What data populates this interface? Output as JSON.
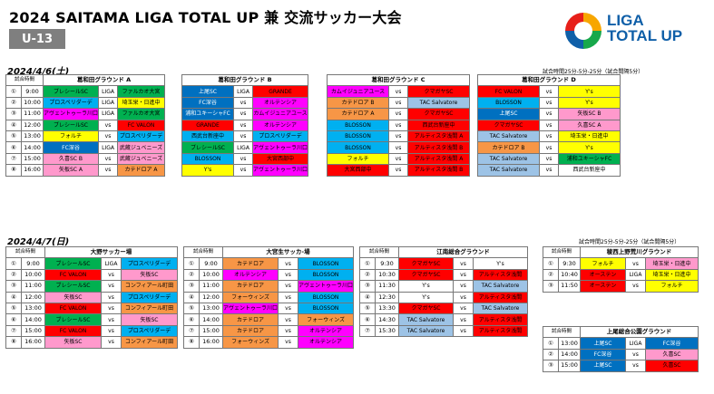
{
  "title": "2024 SAITAMA LIGA TOTAL UP 兼 交流サッカー大会",
  "category": "U-13",
  "logo": {
    "line1": "LIGA",
    "line2": "TOTAL UP",
    "colors": [
      "#f7a600",
      "#e71f19",
      "#17a84b",
      "#0f5fa8"
    ]
  },
  "day1": {
    "date": "2024/4/6(土)",
    "note": "試合時間25分-5分-25分（試合間隔5分）",
    "time_header": "試合時間",
    "tables": [
      {
        "venue": "葛和田グラウンド A",
        "rows": [
          {
            "num": "①",
            "time": "9:00",
            "h": "ブレシールSC",
            "hc": "#00b050",
            "v": "LIGA",
            "a": "ファルカオ大宮",
            "ac": "#00b050"
          },
          {
            "num": "②",
            "time": "10:00",
            "h": "プロスペリダーデ",
            "hc": "#00b0f0",
            "v": "LIGA",
            "a": "埼玉栄・日進中",
            "ac": "#ffff00"
          },
          {
            "num": "③",
            "time": "11:00",
            "h": "アヴェントゥーラ川口",
            "hc": "#ff00ff",
            "v": "LIGA",
            "a": "ファルカオ大宮",
            "ac": "#00b050"
          },
          {
            "num": "④",
            "time": "12:00",
            "h": "ブレシールSC",
            "hc": "#00b050",
            "v": "vs",
            "a": "FC VALON",
            "ac": "#ff0000"
          },
          {
            "num": "⑤",
            "time": "13:00",
            "h": "フォルチ",
            "hc": "#ffff00",
            "v": "vs",
            "a": "プロスペリダーデ",
            "ac": "#00b0f0"
          },
          {
            "num": "⑥",
            "time": "14:00",
            "h": "FC深谷",
            "hc": "#0070c0",
            "v": "LIGA",
            "a": "武蔵ジュベニーズ",
            "ac": "#ff99cc"
          },
          {
            "num": "⑦",
            "time": "15:00",
            "h": "久喜SC B",
            "hc": "#ff99cc",
            "v": "vs",
            "a": "武蔵ジュベニーズ",
            "ac": "#ff99cc"
          },
          {
            "num": "⑧",
            "time": "16:00",
            "h": "矢板SC A",
            "hc": "#ff99cc",
            "v": "vs",
            "a": "カテドロア A",
            "ac": "#f79646"
          }
        ]
      },
      {
        "venue": "葛和田グラウンド B",
        "rows": [
          {
            "num": "①",
            "time": "",
            "h": "上尾SC",
            "hc": "#0070c0",
            "v": "LIGA",
            "a": "GRANDE",
            "ac": "#ff0000"
          },
          {
            "num": "②",
            "time": "",
            "h": "FC深谷",
            "hc": "#0070c0",
            "v": "vs",
            "a": "オルテンシア",
            "ac": "#ff00ff"
          },
          {
            "num": "③",
            "time": "",
            "h": "浦和ユキーシャFC",
            "hc": "#0070c0",
            "v": "vs",
            "a": "カムイジュニアユース",
            "ac": "#ff00ff"
          },
          {
            "num": "④",
            "time": "",
            "h": "GRANDE",
            "hc": "#ff0000",
            "v": "vs",
            "a": "オルテンシア",
            "ac": "#ff00ff"
          },
          {
            "num": "⑤",
            "time": "",
            "h": "西武台新座中",
            "hc": "#00b0f0",
            "v": "vs",
            "a": "プロスペリダーデ",
            "ac": "#00b0f0"
          },
          {
            "num": "⑥",
            "time": "",
            "h": "ブレシールSC",
            "hc": "#00b050",
            "v": "LIGA",
            "a": "アヴェントゥーラ川口",
            "ac": "#ff00ff"
          },
          {
            "num": "⑦",
            "time": "",
            "h": "BLOSSON",
            "hc": "#00b0f0",
            "v": "vs",
            "a": "大宮西部中",
            "ac": "#ff0000"
          },
          {
            "num": "⑧",
            "time": "",
            "h": "Y's",
            "hc": "#ffff00",
            "v": "vs",
            "a": "アヴェントゥーラ川口",
            "ac": "#ff00ff"
          }
        ]
      },
      {
        "venue": "葛和田グラウンド C",
        "rows": [
          {
            "num": "",
            "time": "",
            "h": "カムイジュニアユース",
            "hc": "#ff00ff",
            "v": "vs",
            "a": "クマガヤSC",
            "ac": "#ff0000"
          },
          {
            "num": "",
            "time": "",
            "h": "カテドロア B",
            "hc": "#f79646",
            "v": "vs",
            "a": "TAC Salvatore",
            "ac": "#9dc3e6"
          },
          {
            "num": "",
            "time": "",
            "h": "カテドロア A",
            "hc": "#f79646",
            "v": "vs",
            "a": "クマガヤSC",
            "ac": "#ff0000"
          },
          {
            "num": "",
            "time": "",
            "h": "BLOSSON",
            "hc": "#00b0f0",
            "v": "vs",
            "a": "西武台新座中",
            "ac": "#ff0000"
          },
          {
            "num": "",
            "time": "",
            "h": "BLOSSON",
            "hc": "#00b0f0",
            "v": "vs",
            "a": "アルティスタ浅間 A",
            "ac": "#ff0000"
          },
          {
            "num": "",
            "time": "",
            "h": "BLOSSON",
            "hc": "#00b0f0",
            "v": "vs",
            "a": "アルティスタ浅間 B",
            "ac": "#ff0000"
          },
          {
            "num": "",
            "time": "",
            "h": "フォルチ",
            "hc": "#ffff00",
            "v": "vs",
            "a": "アルティスタ浅間 A",
            "ac": "#ff0000"
          },
          {
            "num": "",
            "time": "",
            "h": "大宮西部中",
            "hc": "#ff0000",
            "v": "vs",
            "a": "アルティスタ浅間 B",
            "ac": "#ff0000"
          }
        ]
      },
      {
        "venue": "葛和田グラウンド D",
        "rows": [
          {
            "num": "",
            "time": "",
            "h": "FC VALON",
            "hc": "#ff0000",
            "v": "vs",
            "a": "Y's",
            "ac": "#ffff00"
          },
          {
            "num": "",
            "time": "",
            "h": "BLOSSON",
            "hc": "#00b0f0",
            "v": "vs",
            "a": "Y's",
            "ac": "#ffff00"
          },
          {
            "num": "",
            "time": "",
            "h": "上尾SC",
            "hc": "#0070c0",
            "v": "vs",
            "a": "矢板SC B",
            "ac": "#ff99cc"
          },
          {
            "num": "",
            "time": "",
            "h": "クマガヤSC",
            "hc": "#ff0000",
            "v": "vs",
            "a": "久喜SC A",
            "ac": "#ff99cc"
          },
          {
            "num": "",
            "time": "",
            "h": "TAC Salvatore",
            "hc": "#9dc3e6",
            "v": "vs",
            "a": "埼玉栄・日進中",
            "ac": "#ffff00"
          },
          {
            "num": "",
            "time": "",
            "h": "カテドロア B",
            "hc": "#f79646",
            "v": "vs",
            "a": "Y's",
            "ac": "#ffff00"
          },
          {
            "num": "",
            "time": "",
            "h": "TAC Salvatore",
            "hc": "#9dc3e6",
            "v": "vs",
            "a": "浦和ユキーシャFC",
            "ac": "#00b050"
          },
          {
            "num": "",
            "time": "",
            "h": "TAC Salvatore",
            "hc": "#9dc3e6",
            "v": "vs",
            "a": "西武台新座中",
            "ac": "#ffffff"
          }
        ]
      }
    ]
  },
  "day2": {
    "date": "2024/4/7(日)",
    "note": "試合時間25分-5分-25分（試合間隔5分）",
    "time_header": "試合時間",
    "tables": [
      {
        "venue": "大野サッカー場",
        "rows": [
          {
            "num": "①",
            "time": "9:00",
            "h": "ブレシールSC",
            "hc": "#00b050",
            "v": "LIGA",
            "a": "プロスペリダーデ",
            "ac": "#00b0f0"
          },
          {
            "num": "②",
            "time": "10:00",
            "h": "FC VALON",
            "hc": "#ff0000",
            "v": "vs",
            "a": "矢板SC",
            "ac": "#ff99cc"
          },
          {
            "num": "③",
            "time": "11:00",
            "h": "ブレシールSC",
            "hc": "#00b050",
            "v": "vs",
            "a": "コンフィアール町田",
            "ac": "#f79646"
          },
          {
            "num": "④",
            "time": "12:00",
            "h": "矢板SC",
            "hc": "#ff99cc",
            "v": "vs",
            "a": "プロスペリダーデ",
            "ac": "#00b0f0"
          },
          {
            "num": "⑤",
            "time": "13:00",
            "h": "FC VALON",
            "hc": "#ff0000",
            "v": "vs",
            "a": "コンフィアール町田",
            "ac": "#f79646"
          },
          {
            "num": "⑥",
            "time": "14:00",
            "h": "ブレシールSC",
            "hc": "#00b050",
            "v": "vs",
            "a": "矢板SC",
            "ac": "#ff99cc"
          },
          {
            "num": "⑦",
            "time": "15:00",
            "h": "FC VALON",
            "hc": "#ff0000",
            "v": "vs",
            "a": "プロスペリダーデ",
            "ac": "#00b0f0"
          },
          {
            "num": "⑧",
            "time": "16:00",
            "h": "矢板SC",
            "hc": "#ff99cc",
            "v": "vs",
            "a": "コンフィアール町田",
            "ac": "#f79646"
          }
        ]
      },
      {
        "venue": "大宮生サッカ-場",
        "rows": [
          {
            "num": "①",
            "time": "9:00",
            "h": "カテドロア",
            "hc": "#f79646",
            "v": "vs",
            "a": "BLOSSON",
            "ac": "#00b0f0"
          },
          {
            "num": "②",
            "time": "10:00",
            "h": "オルテンシア",
            "hc": "#ff00ff",
            "v": "vs",
            "a": "BLOSSON",
            "ac": "#00b0f0"
          },
          {
            "num": "③",
            "time": "11:00",
            "h": "カテドロア",
            "hc": "#f79646",
            "v": "vs",
            "a": "アヴェントゥーラ川口",
            "ac": "#ff00ff"
          },
          {
            "num": "④",
            "time": "12:00",
            "h": "フォーウィンズ",
            "hc": "#f79646",
            "v": "vs",
            "a": "BLOSSON",
            "ac": "#00b0f0"
          },
          {
            "num": "⑤",
            "time": "13:00",
            "h": "アヴェントゥーラ川口",
            "hc": "#ff00ff",
            "v": "vs",
            "a": "BLOSSON",
            "ac": "#00b0f0"
          },
          {
            "num": "⑥",
            "time": "14:00",
            "h": "カテドロア",
            "hc": "#f79646",
            "v": "vs",
            "a": "フォーウィンズ",
            "ac": "#f79646"
          },
          {
            "num": "⑦",
            "time": "15:00",
            "h": "カテドロア",
            "hc": "#f79646",
            "v": "vs",
            "a": "オルテンシア",
            "ac": "#ff00ff"
          },
          {
            "num": "⑧",
            "time": "16:00",
            "h": "フォーウィンズ",
            "hc": "#f79646",
            "v": "vs",
            "a": "オルテンシア",
            "ac": "#ff00ff"
          }
        ]
      },
      {
        "venue": "江南総合グラウンド",
        "rows": [
          {
            "num": "①",
            "time": "9:30",
            "h": "クマガヤSC",
            "hc": "#ff0000",
            "v": "vs",
            "a": "Y's",
            "ac": "#ffffff"
          },
          {
            "num": "②",
            "time": "10:30",
            "h": "クマガヤSC",
            "hc": "#ff0000",
            "v": "vs",
            "a": "アルティスタ浅間",
            "ac": "#ff0000"
          },
          {
            "num": "③",
            "time": "11:30",
            "h": "Y's",
            "hc": "#ffffff",
            "v": "vs",
            "a": "TAC Salvatore",
            "ac": "#9dc3e6"
          },
          {
            "num": "④",
            "time": "12:30",
            "h": "Y's",
            "hc": "#ffffff",
            "v": "vs",
            "a": "アルティスタ浅間",
            "ac": "#ff0000"
          },
          {
            "num": "⑤",
            "time": "13:30",
            "h": "クマガヤSC",
            "hc": "#ff0000",
            "v": "vs",
            "a": "TAC Salvatore",
            "ac": "#9dc3e6"
          },
          {
            "num": "⑥",
            "time": "14:30",
            "h": "TAC Salvatore",
            "hc": "#9dc3e6",
            "v": "vs",
            "a": "アルティスタ浅間",
            "ac": "#ff0000"
          },
          {
            "num": "⑦",
            "time": "15:30",
            "h": "TAC Salvatore",
            "hc": "#9dc3e6",
            "v": "vs",
            "a": "アルティスタ浅間",
            "ac": "#ff0000"
          }
        ]
      },
      {
        "venue": "稜西上野荒川グラウンド",
        "rows": [
          {
            "num": "①",
            "time": "9:30",
            "h": "フォルチ",
            "hc": "#ffff00",
            "v": "vs",
            "a": "埼玉栄・日進中",
            "ac": "#ff99cc"
          },
          {
            "num": "②",
            "time": "10:40",
            "h": "オーステン",
            "hc": "#ff0000",
            "v": "LIGA",
            "a": "埼玉栄・日進中",
            "ac": "#ffff00"
          },
          {
            "num": "③",
            "time": "11:50",
            "h": "オーステン",
            "hc": "#ff0000",
            "v": "vs",
            "a": "フォルチ",
            "ac": "#ffff00"
          }
        ]
      },
      {
        "venue": "上尾総合公園グラウンド",
        "rows": [
          {
            "num": "①",
            "time": "13:00",
            "h": "上尾SC",
            "hc": "#0070c0",
            "v": "LIGA",
            "a": "FC深谷",
            "ac": "#0070c0"
          },
          {
            "num": "②",
            "time": "14:00",
            "h": "FC深谷",
            "hc": "#0070c0",
            "v": "vs",
            "a": "久喜SC",
            "ac": "#ff99cc"
          },
          {
            "num": "③",
            "time": "15:00",
            "h": "上尾SC",
            "hc": "#0070c0",
            "v": "vs",
            "a": "久喜SC",
            "ac": "#ff0000"
          }
        ]
      }
    ]
  }
}
